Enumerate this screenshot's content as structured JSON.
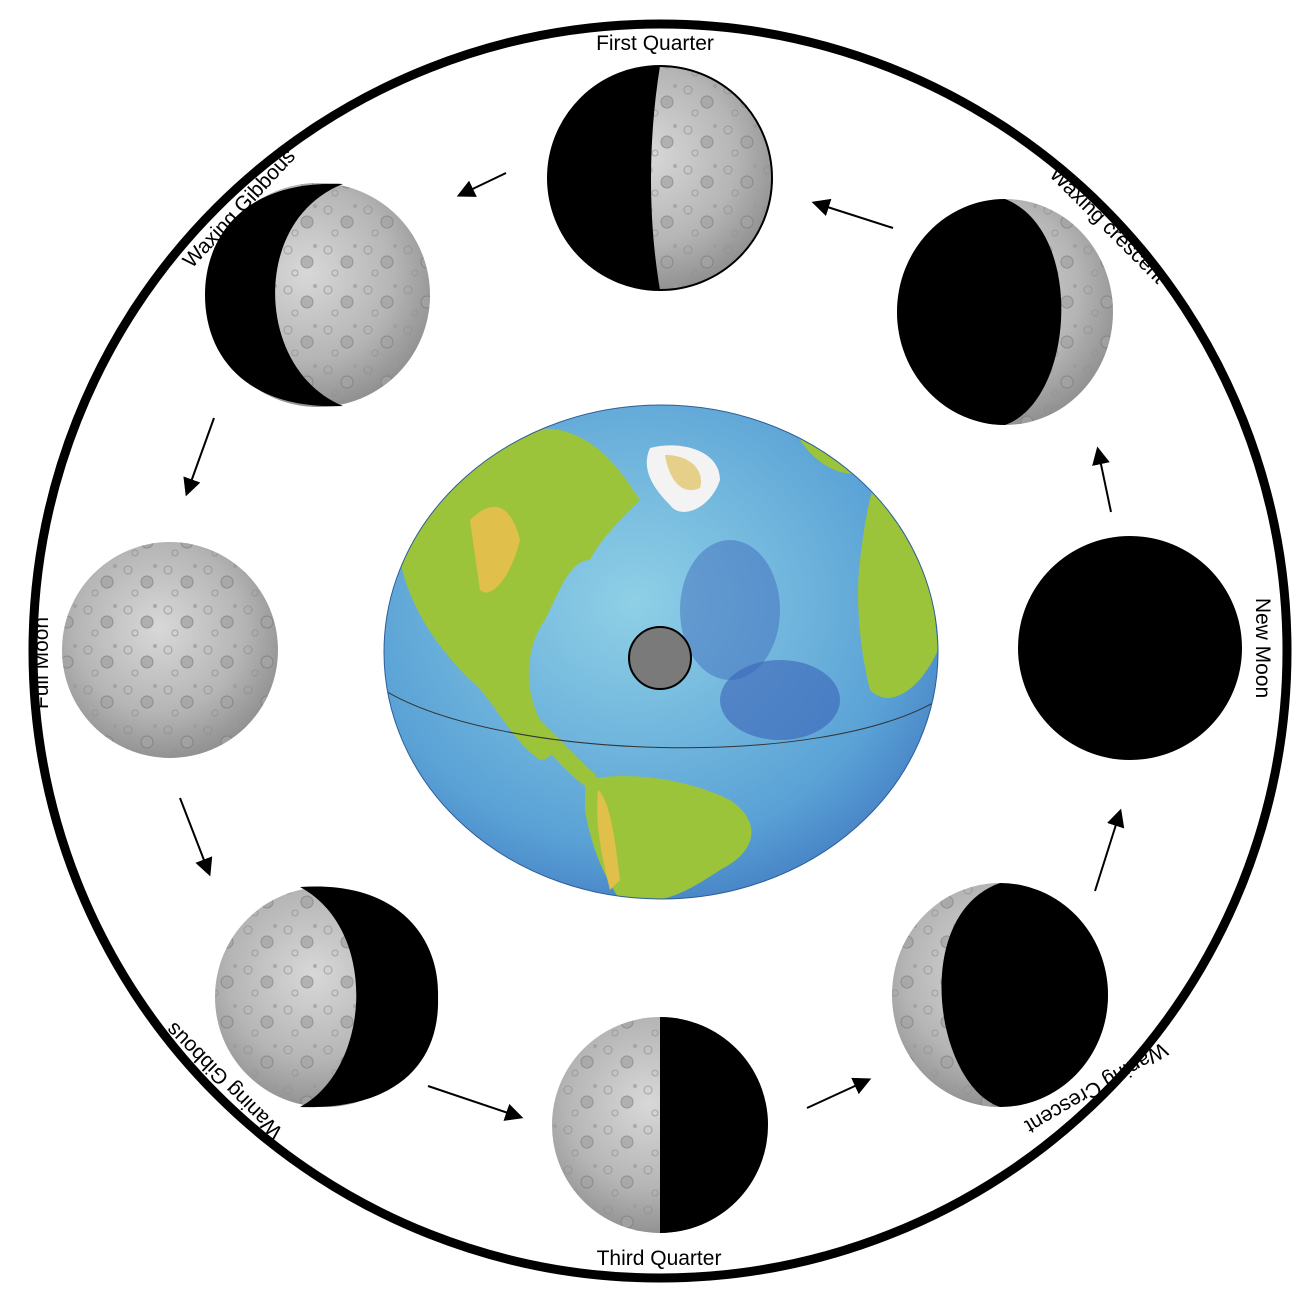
{
  "diagram": {
    "phases": [
      {
        "key": "first_quarter",
        "label": "First Quarter",
        "lit_side": "right",
        "lit_fraction": 0.5
      },
      {
        "key": "waxing_crescent",
        "label": "Waxing crescent",
        "lit_side": "right",
        "lit_fraction": 0.15
      },
      {
        "key": "new_moon",
        "label": "New Moon",
        "lit_side": "none",
        "lit_fraction": 0.0
      },
      {
        "key": "waning_crescent",
        "label": "Waning Crescent",
        "lit_side": "left",
        "lit_fraction": 0.15
      },
      {
        "key": "third_quarter",
        "label": "Third Quarter",
        "lit_side": "left",
        "lit_fraction": 0.5
      },
      {
        "key": "waning_gibbous",
        "label": "Waning Gibbous",
        "lit_side": "left",
        "lit_fraction": 0.65
      },
      {
        "key": "full_moon",
        "label": "Full Moon",
        "lit_side": "both",
        "lit_fraction": 1.0
      },
      {
        "key": "waxing_gibbous",
        "label": "Waxing Gibbous",
        "lit_side": "right",
        "lit_fraction": 0.65
      }
    ],
    "colors": {
      "outline": "#000000",
      "shadow": "#000000",
      "moon_lit": "#b9b9b9",
      "ocean": "#5fa8d8",
      "deep_ocean": "#3a63b8",
      "land": "#9cc43a",
      "mountains": "#e0c04a",
      "ice": "#f3f3f3",
      "center_marker": "#7a7a7a"
    }
  }
}
